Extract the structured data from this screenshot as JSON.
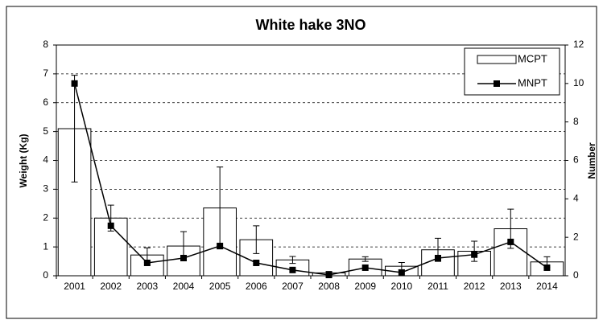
{
  "chart_data": {
    "type": "bar-line",
    "title": "White hake 3NO",
    "y_label": "Weight (Kg)",
    "y2_label": "Number",
    "categories": [
      "2001",
      "2002",
      "2003",
      "2004",
      "2005",
      "2006",
      "2007",
      "2008",
      "2009",
      "2010",
      "2011",
      "2012",
      "2013",
      "2014"
    ],
    "series": [
      {
        "name": "MCPT",
        "type": "bar",
        "color": "#ffffff",
        "values": [
          5.1,
          2.0,
          0.72,
          1.03,
          2.35,
          1.25,
          0.55,
          0.1,
          0.58,
          0.33,
          0.9,
          0.85,
          1.63,
          0.48
        ],
        "errors": [
          1.85,
          0.45,
          0.25,
          0.5,
          1.42,
          0.48,
          0.12,
          0.05,
          0.08,
          0.13,
          0.4,
          0.35,
          0.68,
          0.18
        ]
      },
      {
        "name": "MNPT",
        "type": "line",
        "axis": "y2",
        "color": "#000000",
        "values": [
          10.0,
          2.6,
          0.67,
          0.92,
          1.55,
          0.67,
          0.3,
          0.04,
          0.42,
          0.17,
          0.92,
          1.1,
          1.76,
          0.42
        ]
      }
    ],
    "ylim": [
      0,
      8
    ],
    "yticks": [
      0,
      1,
      2,
      3,
      4,
      5,
      6,
      7,
      8
    ],
    "y2lim": [
      0,
      12
    ],
    "y2ticks": [
      0,
      2,
      4,
      6,
      8,
      10,
      12
    ],
    "grid": true,
    "legend": "top-right"
  }
}
